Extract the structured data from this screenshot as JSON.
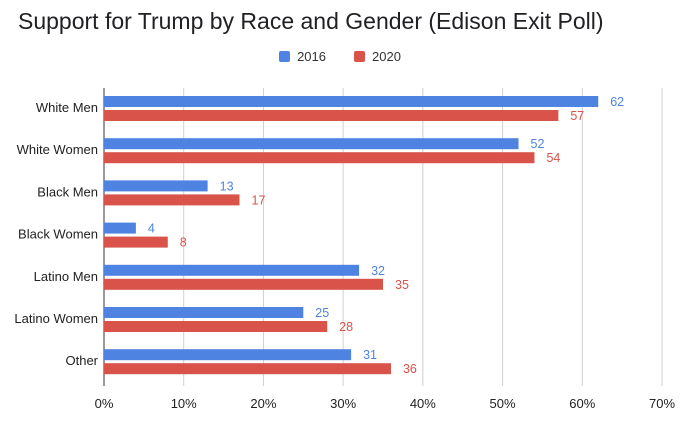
{
  "chart_data": {
    "type": "bar",
    "orientation": "horizontal",
    "title": "Support for Trump by Race and Gender (Edison Exit Poll)",
    "categories": [
      "White Men",
      "White Women",
      "Black Men",
      "Black Women",
      "Latino Men",
      "Latino Women",
      "Other"
    ],
    "series": [
      {
        "name": "2016",
        "color": "#4f83e2",
        "values": [
          62,
          52,
          13,
          4,
          32,
          25,
          31
        ]
      },
      {
        "name": "2020",
        "color": "#d9534a",
        "values": [
          57,
          54,
          17,
          8,
          35,
          28,
          36
        ]
      }
    ],
    "xlim": [
      0,
      70
    ],
    "x_ticks": [
      "0%",
      "10%",
      "20%",
      "30%",
      "40%",
      "50%",
      "60%",
      "70%"
    ],
    "grid": true,
    "legend_position": "top"
  }
}
